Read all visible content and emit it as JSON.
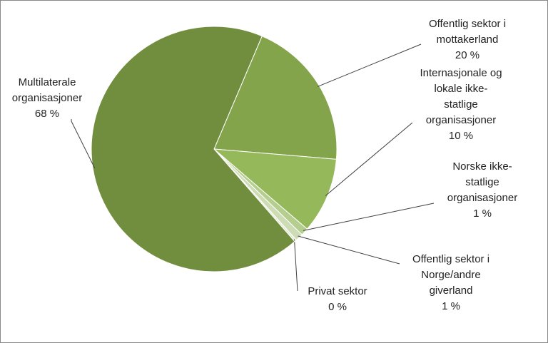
{
  "chart_data": {
    "type": "pie",
    "title": "",
    "colors": {
      "Multilaterale organisasjoner": "#718e3f",
      "Offentlig sektor i mottakerland": "#84a44c",
      "Internasjonale og lokale ikke-statlige organisasjoner": "#95b85a",
      "Norske ikke-statlige organisasjoner": "#b6cd90",
      "Offentlig sektor i Norge/andre giverland": "#cddcb4",
      "Privat sektor": "#e4ecd6"
    },
    "slices": [
      {
        "name": "Offentlig sektor i mottakerland",
        "value": 20,
        "label_lines": [
          "Offentlig sektor i",
          "mottakerland",
          "20 %"
        ]
      },
      {
        "name": "Internasjonale og lokale ikke-statlige organisasjoner",
        "value": 10,
        "label_lines": [
          "Internasjonale og",
          "lokale ikke-",
          "statlige",
          "organisasjoner",
          "10 %"
        ]
      },
      {
        "name": "Norske ikke-statlige organisasjoner",
        "value": 1,
        "label_lines": [
          "Norske ikke-",
          "statlige",
          "organisasjoner",
          "1 %"
        ]
      },
      {
        "name": "Offentlig sektor i Norge/andre giverland",
        "value": 1,
        "label_lines": [
          "Offentlig sektor i",
          "Norge/andre",
          "giverland",
          "1 %"
        ]
      },
      {
        "name": "Privat sektor",
        "value": 0.3,
        "label_lines": [
          "Privat sektor",
          "0 %"
        ]
      },
      {
        "name": "Multilaterale organisasjoner",
        "value": 68,
        "label_lines": [
          "Multilaterale",
          "organisasjoner",
          "68 %"
        ]
      }
    ]
  }
}
